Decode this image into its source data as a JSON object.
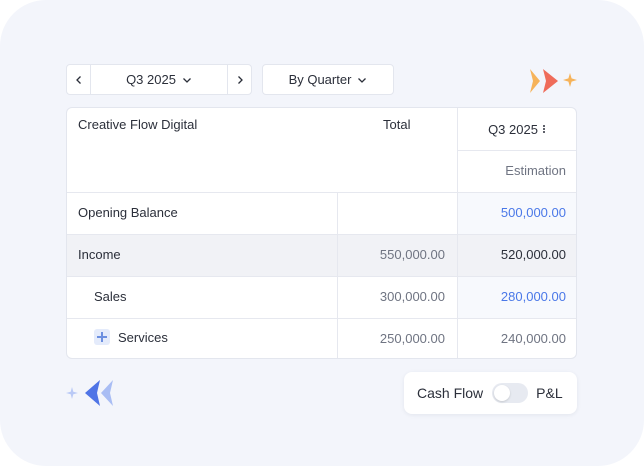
{
  "toolbar": {
    "period_label": "Q3 2025",
    "granularity_label": "By Quarter"
  },
  "table": {
    "company": "Creative Flow Digital",
    "total_header": "Total",
    "period_header": "Q3 2025",
    "period_sub_header": "Estimation",
    "rows": [
      {
        "label": "Opening Balance",
        "total": "",
        "q3": "500,000.00"
      },
      {
        "label": "Income",
        "total": "550,000.00",
        "q3": "520,000.00"
      },
      {
        "label": "Sales",
        "total": "300,000.00",
        "q3": "280,000.00"
      },
      {
        "label": "Services",
        "total": "250,000.00",
        "q3": "240,000.00"
      }
    ]
  },
  "toggle": {
    "left_label": "Cash Flow",
    "right_label": "P&L",
    "state": "Cash Flow"
  },
  "colors": {
    "accent_blue": "#4a78e8",
    "income_row_bg": "#f1f2f6",
    "blue_cell_bg": "#f7f9fd"
  }
}
